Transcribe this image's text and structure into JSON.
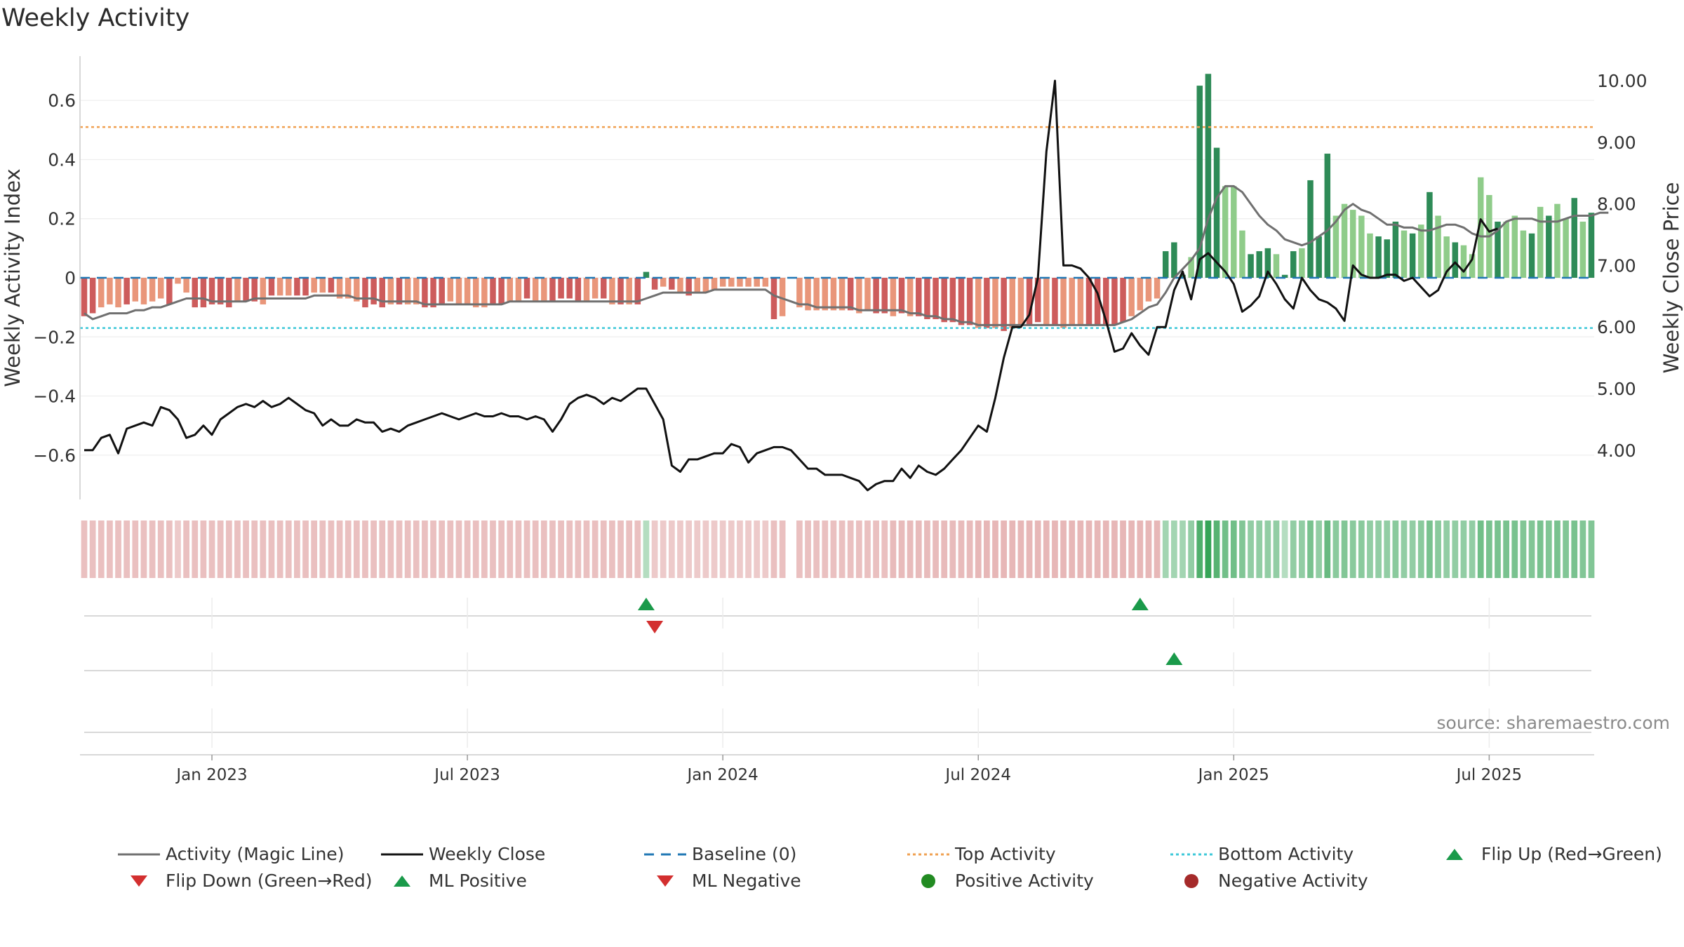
{
  "title": "Weekly Activity",
  "source": "source: sharemaestro.com",
  "colors": {
    "pos_dark": "#2e8b57",
    "pos_light": "#8fcc8a",
    "neg_dark": "#cd5c5c",
    "neg_light": "#e9967a",
    "magic": "#707070",
    "close": "#111111",
    "baseline": "#1f77b4",
    "top": "#f0a050",
    "bottom": "#3cc8d8",
    "flip_up": "#1a9a4a",
    "flip_down": "#d32f2f"
  },
  "legend": [
    {
      "label": "Activity (Magic Line)",
      "icon": "gray-line"
    },
    {
      "label": "Weekly Close",
      "icon": "black-line"
    },
    {
      "label": "Baseline (0)",
      "icon": "blue-dash"
    },
    {
      "label": "Top Activity",
      "icon": "orange-dot"
    },
    {
      "label": "Bottom Activity",
      "icon": "cyan-dot"
    },
    {
      "label": "Flip Up (Red→Green)",
      "icon": "green-triangle-up"
    },
    {
      "label": "Flip Down (Green→Red)",
      "icon": "red-triangle-down"
    },
    {
      "label": "ML Positive",
      "icon": "green-triangle-up"
    },
    {
      "label": "ML Negative",
      "icon": "red-triangle-down"
    },
    {
      "label": "Positive Activity",
      "icon": "green-circle"
    },
    {
      "label": "Negative Activity",
      "icon": "darkred-circle"
    }
  ],
  "chart_data": {
    "type": "bar",
    "title": "Weekly Activity",
    "ylabel": "Weekly Activity Index",
    "y2label": "Weekly Close Price",
    "ylim": [
      -0.75,
      0.75
    ],
    "y2lim": [
      3.2,
      10.4
    ],
    "ytick_labels": [
      "−0.6",
      "−0.4",
      "−0.2",
      "0",
      "0.2",
      "0.4",
      "0.6"
    ],
    "ytick_values": [
      -0.6,
      -0.4,
      -0.2,
      0,
      0.2,
      0.4,
      0.6
    ],
    "y2tick_labels": [
      "4.00",
      "5.00",
      "6.00",
      "7.00",
      "8.00",
      "9.00",
      "10.00"
    ],
    "y2tick_values": [
      4,
      5,
      6,
      7,
      8,
      9,
      10
    ],
    "xtick_labels": [
      "Jan 2023",
      "Jul 2023",
      "Jan 2024",
      "Jul 2024",
      "Jan 2025",
      "Jul 2025"
    ],
    "xtick_weeks": [
      15,
      45,
      75,
      105,
      135,
      165
    ],
    "top_activity": 0.51,
    "bottom_activity": -0.17,
    "baseline": 0,
    "activity": [
      -0.13,
      -0.12,
      -0.1,
      -0.09,
      -0.1,
      -0.09,
      -0.08,
      -0.09,
      -0.08,
      -0.07,
      -0.09,
      -0.02,
      -0.05,
      -0.1,
      -0.1,
      -0.09,
      -0.09,
      -0.1,
      -0.08,
      -0.08,
      -0.08,
      -0.09,
      -0.06,
      -0.06,
      -0.06,
      -0.06,
      -0.06,
      -0.05,
      -0.05,
      -0.05,
      -0.07,
      -0.07,
      -0.08,
      -0.1,
      -0.09,
      -0.1,
      -0.09,
      -0.09,
      -0.09,
      -0.09,
      -0.1,
      -0.1,
      -0.09,
      -0.08,
      -0.09,
      -0.09,
      -0.1,
      -0.1,
      -0.09,
      -0.09,
      -0.08,
      -0.08,
      -0.07,
      -0.08,
      -0.08,
      -0.08,
      -0.07,
      -0.07,
      -0.08,
      -0.08,
      -0.07,
      -0.07,
      -0.09,
      -0.09,
      -0.09,
      -0.09,
      0.02,
      -0.04,
      -0.03,
      -0.04,
      -0.05,
      -0.06,
      -0.05,
      -0.05,
      -0.04,
      -0.03,
      -0.03,
      -0.03,
      -0.03,
      -0.03,
      -0.03,
      -0.14,
      -0.13,
      null,
      -0.1,
      -0.11,
      -0.11,
      -0.11,
      -0.11,
      -0.11,
      -0.11,
      -0.12,
      -0.11,
      -0.12,
      -0.12,
      -0.13,
      -0.12,
      -0.13,
      -0.13,
      -0.14,
      -0.14,
      -0.15,
      -0.15,
      -0.16,
      -0.16,
      -0.17,
      -0.17,
      -0.17,
      -0.18,
      -0.17,
      -0.16,
      -0.16,
      -0.15,
      -0.16,
      -0.16,
      -0.17,
      -0.16,
      -0.16,
      -0.16,
      -0.16,
      -0.16,
      -0.16,
      -0.15,
      -0.13,
      -0.11,
      -0.08,
      -0.07,
      0.09,
      0.12,
      0.01,
      0.07,
      0.65,
      0.69,
      0.44,
      0.31,
      0.31,
      0.16,
      0.08,
      0.09,
      0.1,
      0.08,
      0.01,
      0.09,
      0.1,
      0.33,
      0.14,
      0.42,
      0.21,
      0.25,
      0.23,
      0.21,
      0.15,
      0.14,
      0.13,
      0.19,
      0.16,
      0.15,
      0.18,
      0.29,
      0.21,
      0.14,
      0.12,
      0.11,
      0.08,
      0.34,
      0.28,
      0.19,
      0.19,
      0.21,
      0.16,
      0.15,
      0.24,
      0.21,
      0.25,
      0.2,
      0.27,
      0.19,
      0.22
    ],
    "bar_shade": [
      "d",
      "d",
      "l",
      "l",
      "l",
      "d",
      "l",
      "l",
      "l",
      "l",
      "d",
      "l",
      "l",
      "d",
      "d",
      "d",
      "d",
      "d",
      "l",
      "d",
      "d",
      "l",
      "d",
      "l",
      "l",
      "d",
      "d",
      "l",
      "l",
      "d",
      "l",
      "l",
      "l",
      "d",
      "d",
      "d",
      "l",
      "d",
      "l",
      "l",
      "d",
      "d",
      "d",
      "l",
      "l",
      "l",
      "l",
      "l",
      "d",
      "d",
      "l",
      "l",
      "d",
      "l",
      "l",
      "d",
      "d",
      "d",
      "d",
      "l",
      "l",
      "d",
      "l",
      "d",
      "l",
      "d",
      "d",
      "d",
      "l",
      "d",
      "l",
      "d",
      "l",
      "l",
      "l",
      "l",
      "l",
      "l",
      "l",
      "l",
      "l",
      "d",
      "l",
      "-",
      "l",
      "l",
      "l",
      "l",
      "l",
      "l",
      "d",
      "l",
      "l",
      "d",
      "d",
      "l",
      "d",
      "l",
      "d",
      "d",
      "d",
      "d",
      "d",
      "d",
      "d",
      "l",
      "d",
      "l",
      "d",
      "l",
      "l",
      "d",
      "d",
      "l",
      "d",
      "l",
      "l",
      "l",
      "d",
      "d",
      "d",
      "d",
      "d",
      "l",
      "l",
      "l",
      "l",
      "d",
      "d",
      "d",
      "l",
      "d",
      "d",
      "d",
      "l",
      "l",
      "l",
      "d",
      "d",
      "d",
      "l",
      "d",
      "d",
      "l",
      "d",
      "d",
      "d",
      "l",
      "l",
      "l",
      "l",
      "l",
      "d",
      "d",
      "d",
      "l",
      "d",
      "l",
      "d",
      "l",
      "l",
      "d",
      "l",
      "l",
      "l",
      "l",
      "d",
      "l",
      "l",
      "l",
      "d",
      "l",
      "d",
      "l",
      "l",
      "d",
      "l",
      "d",
      "l",
      "d",
      "l",
      "d",
      "d"
    ],
    "magic_line": [
      -0.12,
      -0.14,
      -0.13,
      -0.12,
      -0.12,
      -0.12,
      -0.11,
      -0.11,
      -0.1,
      -0.1,
      -0.09,
      -0.08,
      -0.07,
      -0.07,
      -0.07,
      -0.08,
      -0.08,
      -0.08,
      -0.08,
      -0.08,
      -0.07,
      -0.07,
      -0.07,
      -0.07,
      -0.07,
      -0.07,
      -0.07,
      -0.06,
      -0.06,
      -0.06,
      -0.06,
      -0.06,
      -0.07,
      -0.07,
      -0.07,
      -0.08,
      -0.08,
      -0.08,
      -0.08,
      -0.08,
      -0.09,
      -0.09,
      -0.09,
      -0.09,
      -0.09,
      -0.09,
      -0.09,
      -0.09,
      -0.09,
      -0.09,
      -0.08,
      -0.08,
      -0.08,
      -0.08,
      -0.08,
      -0.08,
      -0.08,
      -0.08,
      -0.08,
      -0.08,
      -0.08,
      -0.08,
      -0.08,
      -0.08,
      -0.08,
      -0.08,
      -0.07,
      -0.06,
      -0.05,
      -0.05,
      -0.05,
      -0.05,
      -0.05,
      -0.05,
      -0.04,
      -0.04,
      -0.04,
      -0.04,
      -0.04,
      -0.04,
      -0.04,
      -0.06,
      -0.07,
      -0.08,
      -0.09,
      -0.09,
      -0.1,
      -0.1,
      -0.1,
      -0.1,
      -0.1,
      -0.11,
      -0.11,
      -0.11,
      -0.11,
      -0.11,
      -0.11,
      -0.12,
      -0.12,
      -0.13,
      -0.13,
      -0.14,
      -0.14,
      -0.15,
      -0.15,
      -0.16,
      -0.16,
      -0.16,
      -0.16,
      -0.16,
      -0.16,
      -0.16,
      -0.16,
      -0.16,
      -0.16,
      -0.16,
      -0.16,
      -0.16,
      -0.16,
      -0.16,
      -0.16,
      -0.16,
      -0.15,
      -0.14,
      -0.12,
      -0.1,
      -0.09,
      -0.05,
      0.0,
      0.03,
      0.06,
      0.1,
      0.2,
      0.27,
      0.31,
      0.31,
      0.29,
      0.25,
      0.21,
      0.18,
      0.16,
      0.13,
      0.12,
      0.11,
      0.12,
      0.14,
      0.16,
      0.19,
      0.23,
      0.25,
      0.23,
      0.22,
      0.2,
      0.18,
      0.18,
      0.17,
      0.17,
      0.16,
      0.16,
      0.17,
      0.18,
      0.18,
      0.17,
      0.15,
      0.14,
      0.14,
      0.16,
      0.19,
      0.2,
      0.2,
      0.2,
      0.19,
      0.19,
      0.19,
      0.2,
      0.21,
      0.21,
      0.21,
      0.22,
      0.22
    ],
    "weekly_close": [
      4.0,
      4.0,
      4.2,
      4.25,
      3.95,
      4.35,
      4.4,
      4.45,
      4.4,
      4.7,
      4.65,
      4.5,
      4.2,
      4.25,
      4.4,
      4.25,
      4.5,
      4.6,
      4.7,
      4.75,
      4.7,
      4.8,
      4.7,
      4.75,
      4.85,
      4.75,
      4.65,
      4.6,
      4.4,
      4.5,
      4.4,
      4.4,
      4.5,
      4.45,
      4.45,
      4.3,
      4.35,
      4.3,
      4.4,
      4.45,
      4.5,
      4.55,
      4.6,
      4.55,
      4.5,
      4.55,
      4.6,
      4.55,
      4.55,
      4.6,
      4.55,
      4.55,
      4.5,
      4.55,
      4.5,
      4.3,
      4.5,
      4.75,
      4.85,
      4.9,
      4.85,
      4.75,
      4.85,
      4.8,
      4.9,
      5.0,
      5.0,
      4.75,
      4.5,
      3.75,
      3.65,
      3.85,
      3.85,
      3.9,
      3.95,
      3.95,
      4.1,
      4.05,
      3.8,
      3.95,
      4.0,
      4.05,
      4.05,
      4.0,
      3.85,
      3.7,
      3.7,
      3.6,
      3.6,
      3.6,
      3.55,
      3.5,
      3.35,
      3.45,
      3.5,
      3.5,
      3.7,
      3.55,
      3.75,
      3.65,
      3.6,
      3.7,
      3.85,
      4.0,
      4.2,
      4.4,
      4.3,
      4.85,
      5.5,
      6.0,
      6.0,
      6.2,
      6.8,
      8.85,
      10.0,
      7.0,
      7.0,
      6.95,
      6.8,
      6.55,
      6.1,
      5.6,
      5.65,
      5.9,
      5.7,
      5.55,
      6.0,
      6.0,
      6.6,
      6.9,
      6.45,
      7.1,
      7.2,
      7.05,
      6.9,
      6.7,
      6.25,
      6.35,
      6.5,
      6.9,
      6.7,
      6.45,
      6.3,
      6.8,
      6.6,
      6.45,
      6.4,
      6.3,
      6.1,
      7.0,
      6.85,
      6.8,
      6.8,
      6.85,
      6.85,
      6.75,
      6.8,
      6.65,
      6.5,
      6.6,
      6.9,
      7.05,
      6.9,
      7.1,
      7.75,
      7.55,
      7.6
    ],
    "activity_strip": [
      -0.3,
      -0.3,
      -0.3,
      -0.3,
      -0.3,
      -0.3,
      -0.3,
      -0.3,
      -0.3,
      -0.3,
      -0.3,
      -0.2,
      -0.3,
      -0.3,
      -0.3,
      -0.3,
      -0.3,
      -0.3,
      -0.3,
      -0.3,
      -0.3,
      -0.3,
      -0.3,
      -0.3,
      -0.3,
      -0.3,
      -0.3,
      -0.3,
      -0.3,
      -0.3,
      -0.3,
      -0.3,
      -0.3,
      -0.3,
      -0.3,
      -0.3,
      -0.3,
      -0.3,
      -0.3,
      -0.3,
      -0.3,
      -0.3,
      -0.3,
      -0.3,
      -0.3,
      -0.3,
      -0.3,
      -0.3,
      -0.3,
      -0.3,
      -0.3,
      -0.3,
      -0.3,
      -0.3,
      -0.3,
      -0.3,
      -0.3,
      -0.3,
      -0.3,
      -0.3,
      -0.3,
      -0.3,
      -0.3,
      -0.3,
      -0.3,
      -0.3,
      0.2,
      -0.2,
      -0.2,
      -0.2,
      -0.2,
      -0.2,
      -0.2,
      -0.2,
      -0.2,
      -0.2,
      -0.2,
      -0.2,
      -0.2,
      -0.2,
      -0.2,
      -0.3,
      -0.3,
      null,
      -0.3,
      -0.3,
      -0.3,
      -0.3,
      -0.3,
      -0.3,
      -0.3,
      -0.3,
      -0.3,
      -0.3,
      -0.3,
      -0.35,
      -0.35,
      -0.35,
      -0.35,
      -0.35,
      -0.35,
      -0.35,
      -0.35,
      -0.35,
      -0.35,
      -0.4,
      -0.4,
      -0.4,
      -0.4,
      -0.4,
      -0.4,
      -0.4,
      -0.4,
      -0.4,
      -0.4,
      -0.4,
      -0.4,
      -0.4,
      -0.4,
      -0.4,
      -0.4,
      -0.4,
      -0.4,
      -0.4,
      -0.4,
      -0.4,
      -0.4,
      0.3,
      0.3,
      0.3,
      0.4,
      0.8,
      0.95,
      0.75,
      0.6,
      0.6,
      0.5,
      0.4,
      0.4,
      0.4,
      0.4,
      0.2,
      0.4,
      0.4,
      0.55,
      0.4,
      0.65,
      0.45,
      0.5,
      0.45,
      0.45,
      0.4,
      0.4,
      0.4,
      0.45,
      0.4,
      0.4,
      0.45,
      0.55,
      0.45,
      0.4,
      0.4,
      0.4,
      0.4,
      0.6,
      0.55,
      0.55,
      0.55,
      0.55,
      0.5,
      0.5,
      0.55,
      0.5,
      0.55,
      0.5,
      0.55,
      0.5,
      0.5
    ],
    "flip_up_weeks": [
      66,
      124
    ],
    "flip_down_weeks": [
      67
    ],
    "ml_positive_weeks": [
      128
    ]
  }
}
